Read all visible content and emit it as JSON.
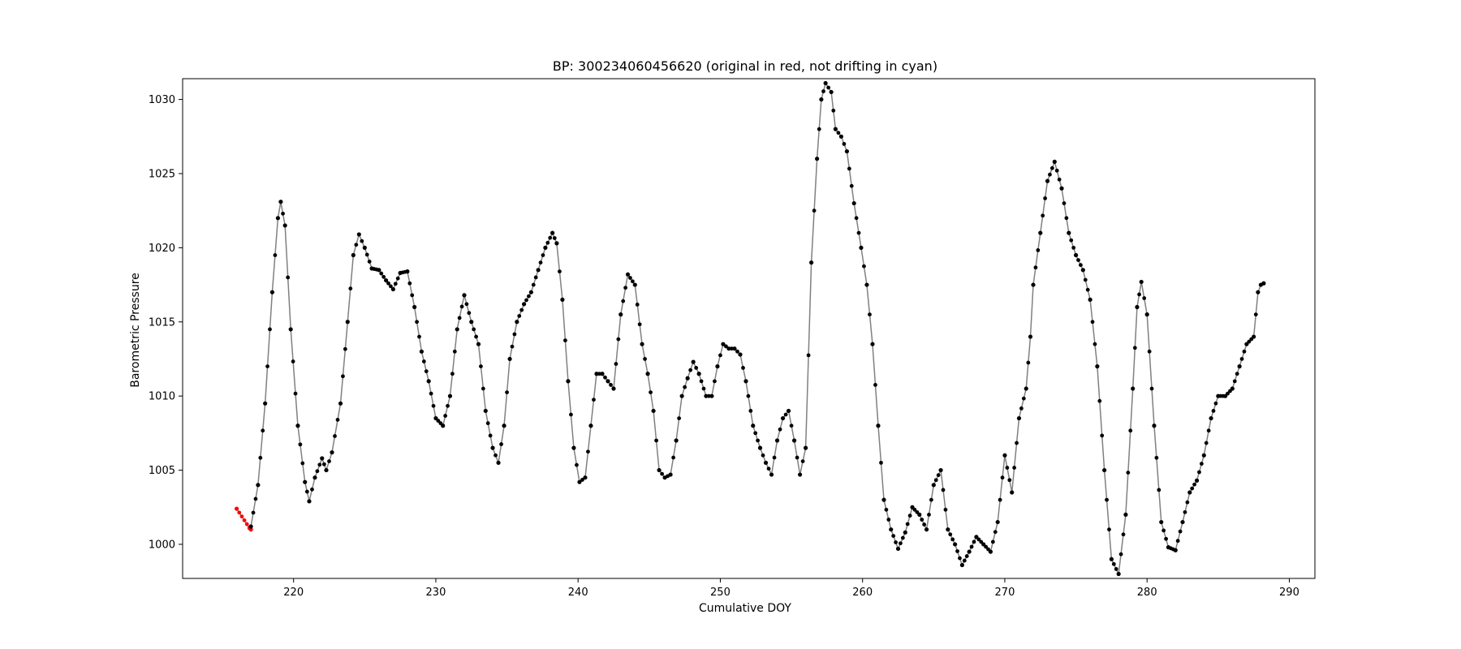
{
  "chart_data": {
    "type": "line",
    "title": "BP: 300234060456620 (original in red, not drifting in cyan)",
    "xlabel": "Cumulative DOY",
    "ylabel": "Barometric Pressure",
    "xlim": [
      212.2,
      291.8
    ],
    "ylim": [
      997.7,
      1031.4
    ],
    "xticks": [
      220,
      230,
      240,
      250,
      260,
      270,
      280,
      290
    ],
    "yticks": [
      1000,
      1005,
      1010,
      1015,
      1020,
      1025,
      1030
    ],
    "grid": false,
    "line_color": "#808080",
    "colors": {
      "drifting": "#000000",
      "original": "#ff0000"
    },
    "series": [
      {
        "name": "original",
        "color": "#ff0000",
        "x": [
          216.0,
          216.9,
          217.0
        ],
        "y": [
          1002.4,
          1001.1,
          1001.0
        ]
      },
      {
        "name": "drifting",
        "color": "#000000",
        "x": [
          217.0,
          217.5,
          218.0,
          218.5,
          218.9,
          219.1,
          219.4,
          219.8,
          220.3,
          220.8,
          221.1,
          221.5,
          222.0,
          222.3,
          222.7,
          223.3,
          223.8,
          224.2,
          224.6,
          225.0,
          225.5,
          226.0,
          226.5,
          227.0,
          227.5,
          228.0,
          228.5,
          229.0,
          229.5,
          230.0,
          230.5,
          231.0,
          231.5,
          232.0,
          232.5,
          233.0,
          233.5,
          234.0,
          234.4,
          234.8,
          235.2,
          235.7,
          236.2,
          236.7,
          237.2,
          237.7,
          238.2,
          238.5,
          238.9,
          239.3,
          239.7,
          240.1,
          240.5,
          240.9,
          241.3,
          241.7,
          242.1,
          242.5,
          243.0,
          243.5,
          244.0,
          244.5,
          244.9,
          245.3,
          245.7,
          246.1,
          246.5,
          246.9,
          247.3,
          247.7,
          248.1,
          248.5,
          249.0,
          249.4,
          249.8,
          250.2,
          250.6,
          251.0,
          251.4,
          251.8,
          252.3,
          252.8,
          253.2,
          253.6,
          254.0,
          254.4,
          254.8,
          255.2,
          255.6,
          256.0,
          256.4,
          256.8,
          257.1,
          257.4,
          257.8,
          258.1,
          258.5,
          258.9,
          259.4,
          259.9,
          260.3,
          260.7,
          261.1,
          261.5,
          262.0,
          262.5,
          263.0,
          263.5,
          264.0,
          264.5,
          265.0,
          265.5,
          266.0,
          266.5,
          267.0,
          267.5,
          268.0,
          268.5,
          269.0,
          269.5,
          270.0,
          270.5,
          271.0,
          271.5,
          271.8,
          272.0,
          272.5,
          273.0,
          273.5,
          274.0,
          274.5,
          275.0,
          275.5,
          276.0,
          276.5,
          277.0,
          277.5,
          278.0,
          278.5,
          279.0,
          279.3,
          279.6,
          280.0,
          280.5,
          281.0,
          281.5,
          282.0,
          282.5,
          283.0,
          283.5,
          284.0,
          284.5,
          285.0,
          285.5,
          286.0,
          286.5,
          287.0,
          287.5,
          287.8,
          288.0,
          288.2
        ],
        "y": [
          1001.2,
          1004.0,
          1009.5,
          1017.0,
          1022.0,
          1023.1,
          1021.5,
          1014.5,
          1008.0,
          1004.2,
          1002.9,
          1004.5,
          1005.8,
          1005.0,
          1006.2,
          1009.5,
          1015.0,
          1019.5,
          1020.9,
          1020.0,
          1018.6,
          1018.5,
          1017.8,
          1017.2,
          1018.3,
          1018.4,
          1016.0,
          1013.0,
          1011.0,
          1008.5,
          1008.0,
          1010.0,
          1014.5,
          1016.8,
          1015.0,
          1013.5,
          1009.0,
          1006.5,
          1005.5,
          1008.0,
          1012.5,
          1015.0,
          1016.2,
          1017.0,
          1018.5,
          1020.0,
          1021.0,
          1020.3,
          1016.5,
          1011.0,
          1006.5,
          1004.2,
          1004.5,
          1008.0,
          1011.5,
          1011.5,
          1011.0,
          1010.5,
          1015.5,
          1018.2,
          1017.5,
          1013.5,
          1011.5,
          1009.0,
          1005.0,
          1004.5,
          1004.7,
          1007.0,
          1010.0,
          1011.2,
          1012.3,
          1011.5,
          1010.0,
          1010.0,
          1012.0,
          1013.5,
          1013.2,
          1013.2,
          1012.8,
          1011.0,
          1008.0,
          1006.5,
          1005.5,
          1004.7,
          1007.0,
          1008.5,
          1009.0,
          1007.0,
          1004.7,
          1006.5,
          1019.0,
          1026.0,
          1030.0,
          1031.1,
          1030.5,
          1028.0,
          1027.5,
          1026.5,
          1023.0,
          1020.0,
          1017.5,
          1013.5,
          1008.0,
          1003.0,
          1001.0,
          999.7,
          1000.8,
          1002.5,
          1002.0,
          1001.0,
          1004.0,
          1005.0,
          1001.0,
          1000.0,
          998.6,
          999.5,
          1000.5,
          1000.0,
          999.5,
          1001.5,
          1006.0,
          1003.5,
          1008.5,
          1010.5,
          1014.0,
          1017.5,
          1021.0,
          1024.5,
          1025.8,
          1024.0,
          1021.0,
          1019.5,
          1018.5,
          1016.5,
          1012.0,
          1005.0,
          999.0,
          998.0,
          1002.0,
          1010.5,
          1016.0,
          1017.7,
          1015.5,
          1008.0,
          1001.5,
          999.8,
          999.6,
          1001.5,
          1003.5,
          1004.3,
          1006.0,
          1008.5,
          1010.0,
          1010.0,
          1010.5,
          1012.0,
          1013.5,
          1014.0,
          1017.0,
          1017.5,
          1017.6
        ]
      }
    ]
  }
}
